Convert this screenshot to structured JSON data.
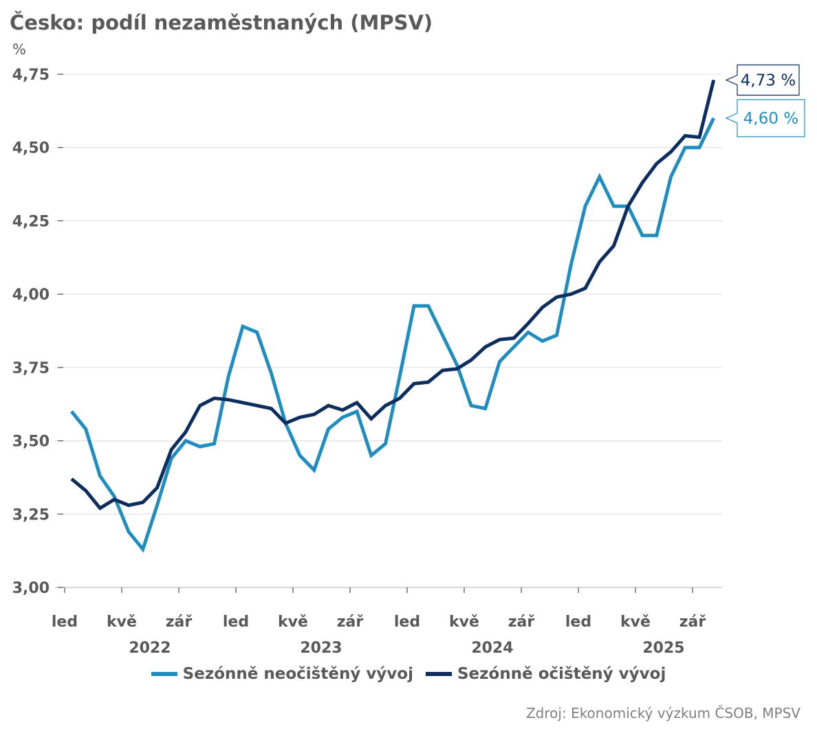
{
  "title": "Česko: podíl nezaměstnaných (MPSV)",
  "source": "Zdroj: Ekonomický výzkum ČSOB, MPSV",
  "chart_data": {
    "type": "line",
    "title": "Česko: podíl nezaměstnaných (MPSV)",
    "ylabel": "%",
    "ylim": [
      3.0,
      4.75
    ],
    "yticks": [
      "3,00",
      "3,25",
      "3,50",
      "3,75",
      "4,00",
      "4,25",
      "4,50",
      "4,75"
    ],
    "ytick_values": [
      3.0,
      3.25,
      3.5,
      3.75,
      4.0,
      4.25,
      4.5,
      4.75
    ],
    "x_start": "2022-01",
    "x_end": "2025-10",
    "xtick_labels": [
      "led",
      "kvě",
      "zář",
      "led",
      "kvě",
      "zář",
      "led",
      "kvě",
      "zář",
      "led",
      "kvě",
      "zář"
    ],
    "year_labels": [
      "2022",
      "2023",
      "2024",
      "2025"
    ],
    "grid": true,
    "legend_position": "bottom",
    "series": [
      {
        "name": "Sezónně neočištěný vývoj",
        "color": "#1f8dbf",
        "end_label": "4,60 %",
        "values": [
          3.6,
          3.54,
          3.38,
          3.31,
          3.19,
          3.13,
          3.28,
          3.44,
          3.5,
          3.48,
          3.49,
          3.72,
          3.89,
          3.87,
          3.73,
          3.56,
          3.45,
          3.4,
          3.54,
          3.58,
          3.6,
          3.45,
          3.49,
          3.72,
          3.96,
          3.96,
          3.86,
          3.76,
          3.62,
          3.61,
          3.77,
          3.82,
          3.87,
          3.84,
          3.86,
          4.1,
          4.3,
          4.4,
          4.3,
          4.3,
          4.2,
          4.2,
          4.4,
          4.5,
          4.5,
          4.6
        ]
      },
      {
        "name": "Sezónně očištěný vývoj",
        "color": "#0d2d5e",
        "end_label": "4,73 %",
        "values": [
          3.37,
          3.33,
          3.27,
          3.3,
          3.28,
          3.29,
          3.34,
          3.47,
          3.53,
          3.62,
          3.645,
          3.64,
          3.63,
          3.62,
          3.61,
          3.56,
          3.58,
          3.59,
          3.62,
          3.605,
          3.63,
          3.575,
          3.62,
          3.645,
          3.695,
          3.7,
          3.74,
          3.745,
          3.775,
          3.82,
          3.845,
          3.85,
          3.9,
          3.955,
          3.99,
          4.0,
          4.02,
          4.11,
          4.165,
          4.3,
          4.38,
          4.445,
          4.485,
          4.54,
          4.535,
          4.73
        ]
      }
    ]
  }
}
